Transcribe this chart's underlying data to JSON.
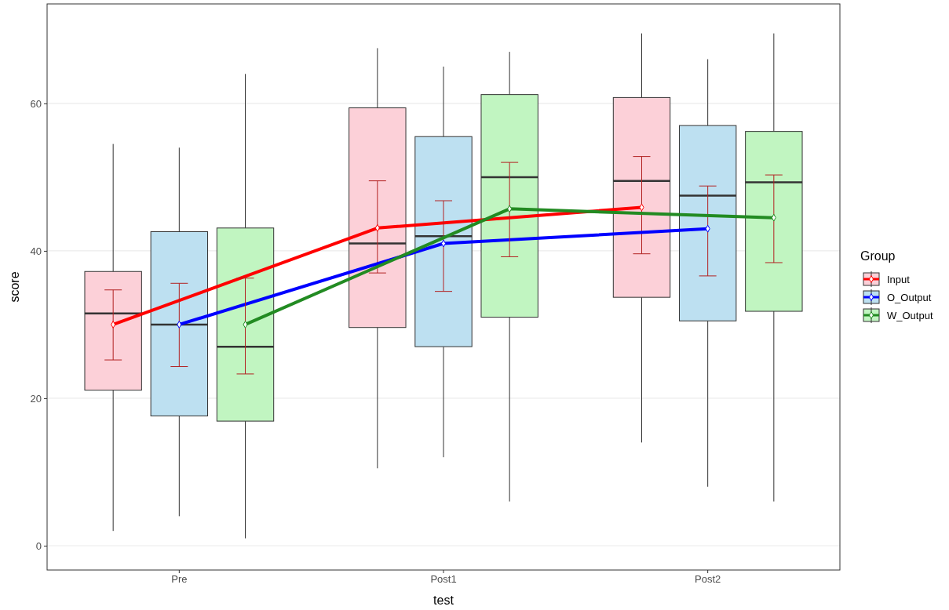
{
  "chart_data": {
    "type": "box",
    "xlabel": "test",
    "ylabel": "score",
    "legend_title": "Group",
    "categories": [
      "Pre",
      "Post1",
      "Post2"
    ],
    "ylim": [
      -3.3,
      73.5
    ],
    "yticks": [
      0,
      20,
      40,
      60
    ],
    "grid": "y",
    "legend": "right",
    "marker": "diamond",
    "series": [
      {
        "name": "Input",
        "color": "#fcd0d8",
        "boxes": [
          {
            "low": 2,
            "q1": 21.1,
            "median": 31.5,
            "q3": 37.2,
            "high": 54.5
          },
          {
            "low": 10.5,
            "q1": 29.6,
            "median": 41,
            "q3": 59.4,
            "high": 67.5
          },
          {
            "low": 14,
            "q1": 33.7,
            "median": 49.5,
            "q3": 60.8,
            "high": 69.5
          }
        ]
      },
      {
        "name": "O_Output",
        "color": "#bde0f1",
        "boxes": [
          {
            "low": 4,
            "q1": 17.6,
            "median": 30,
            "q3": 42.6,
            "high": 54
          },
          {
            "low": 12,
            "q1": 27,
            "median": 42,
            "q3": 55.5,
            "high": 65
          },
          {
            "low": 8,
            "q1": 30.5,
            "median": 47.5,
            "q3": 57,
            "high": 66
          }
        ]
      },
      {
        "name": "W_Output",
        "color": "#c1f5c1",
        "boxes": [
          {
            "low": 1,
            "q1": 16.9,
            "median": 27,
            "q3": 43.1,
            "high": 64
          },
          {
            "low": 6,
            "q1": 31,
            "median": 50,
            "q3": 61.2,
            "high": 67
          },
          {
            "low": 6,
            "q1": 31.8,
            "median": 49.3,
            "q3": 56.2,
            "high": 69.5
          }
        ]
      },
      {
        "type": "line",
        "color": "#ff0000",
        "values": [
          30,
          43.1,
          45.9
        ],
        "errors": [
          [
            25.2,
            34.7
          ],
          [
            37,
            49.5
          ],
          [
            39.6,
            52.8
          ]
        ]
      },
      {
        "type": "line",
        "color": "#0000ff",
        "values": [
          30,
          41,
          43
        ],
        "errors": [
          [
            24.3,
            35.6
          ],
          [
            34.5,
            46.8
          ],
          [
            36.6,
            48.8
          ]
        ]
      },
      {
        "type": "line",
        "color": "#228b22",
        "values": [
          30,
          45.7,
          44.5
        ],
        "errors": [
          [
            23.3,
            36.3
          ],
          [
            39.2,
            52
          ],
          [
            38.4,
            50.3
          ]
        ]
      }
    ]
  }
}
